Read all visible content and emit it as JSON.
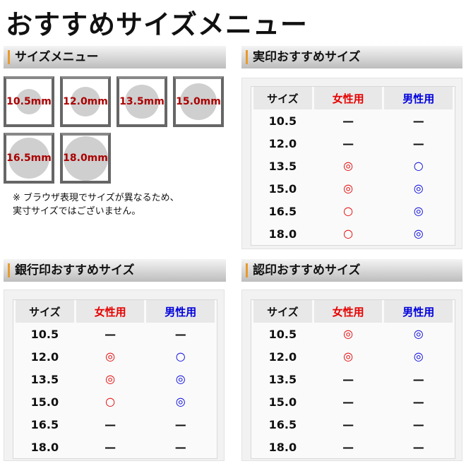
{
  "title": "おすすめサイズメニュー",
  "colors": {
    "female": "#e60000",
    "male": "#0000dd",
    "accent": "#e89a2c",
    "size_label": "#aa0000"
  },
  "size_menu": {
    "heading": "サイズメニュー",
    "sizes": [
      {
        "label": "10.5mm",
        "mm": 10.5
      },
      {
        "label": "12.0mm",
        "mm": 12.0
      },
      {
        "label": "13.5mm",
        "mm": 13.5
      },
      {
        "label": "15.0mm",
        "mm": 15.0
      },
      {
        "label": "16.5mm",
        "mm": 16.5
      },
      {
        "label": "18.0mm",
        "mm": 18.0
      }
    ],
    "note_line1": "※ ブラウザ表現でサイズが異なるため、",
    "note_line2": "実寸サイズではございません。"
  },
  "tables": [
    {
      "heading": "実印おすすめサイズ",
      "columns": [
        "サイズ",
        "女性用",
        "男性用"
      ],
      "rows": [
        [
          "10.5",
          "—",
          "—"
        ],
        [
          "12.0",
          "—",
          "—"
        ],
        [
          "13.5",
          "◎",
          "○"
        ],
        [
          "15.0",
          "◎",
          "◎"
        ],
        [
          "16.5",
          "○",
          "◎"
        ],
        [
          "18.0",
          "○",
          "◎"
        ]
      ]
    },
    {
      "heading": "銀行印おすすめサイズ",
      "columns": [
        "サイズ",
        "女性用",
        "男性用"
      ],
      "rows": [
        [
          "10.5",
          "—",
          "—"
        ],
        [
          "12.0",
          "◎",
          "○"
        ],
        [
          "13.5",
          "◎",
          "◎"
        ],
        [
          "15.0",
          "○",
          "◎"
        ],
        [
          "16.5",
          "—",
          "—"
        ],
        [
          "18.0",
          "—",
          "—"
        ]
      ]
    },
    {
      "heading": "認印おすすめサイズ",
      "columns": [
        "サイズ",
        "女性用",
        "男性用"
      ],
      "rows": [
        [
          "10.5",
          "◎",
          "◎"
        ],
        [
          "12.0",
          "◎",
          "◎"
        ],
        [
          "13.5",
          "—",
          "—"
        ],
        [
          "15.0",
          "—",
          "—"
        ],
        [
          "16.5",
          "—",
          "—"
        ],
        [
          "18.0",
          "—",
          "—"
        ]
      ]
    }
  ]
}
